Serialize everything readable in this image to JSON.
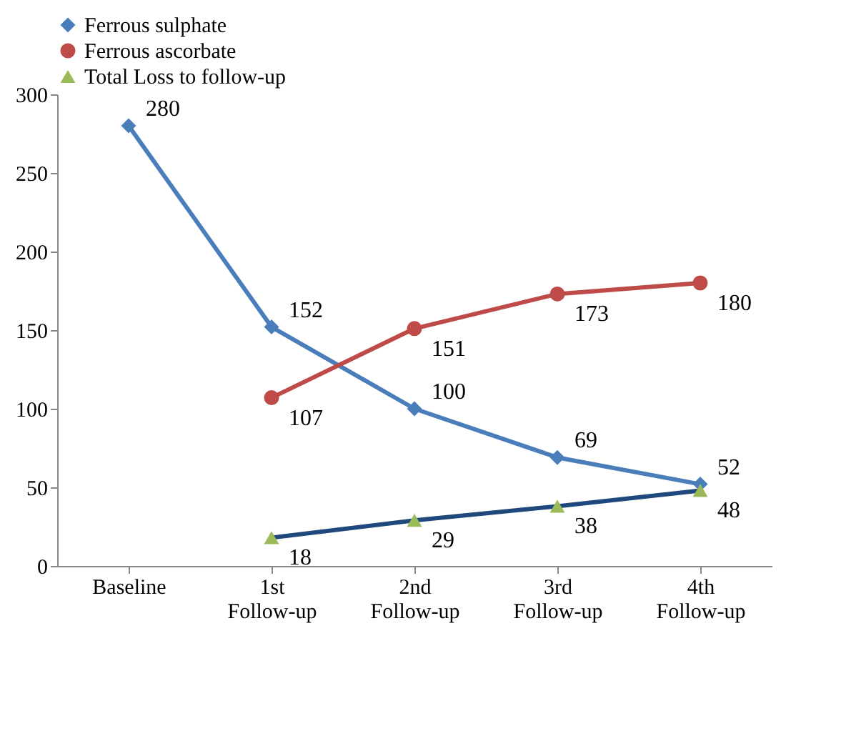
{
  "chart_data": {
    "type": "line",
    "categories": [
      "Baseline",
      "1st Follow-up",
      "2nd Follow-up",
      "3rd Follow-up",
      "4th Follow-up"
    ],
    "series": [
      {
        "name": "Ferrous sulphate",
        "color": "#4a7ebb",
        "marker": "diamond",
        "values": [
          280,
          152,
          100,
          69,
          52
        ]
      },
      {
        "name": "Ferrous ascorbate",
        "color": "#be4b48",
        "marker": "circle",
        "values": [
          null,
          107,
          151,
          173,
          180
        ]
      },
      {
        "name": "Total Loss to follow-up",
        "color": "#1f497d",
        "marker": "triangle",
        "colors": [
          null,
          "#9bbb59",
          "#9bbb59",
          "#9bbb59",
          "#9bbb59"
        ],
        "values": [
          null,
          18,
          29,
          38,
          48
        ]
      }
    ],
    "ylim": [
      0,
      300
    ],
    "yticks": [
      0,
      50,
      100,
      150,
      200,
      250,
      300
    ],
    "grid": false,
    "legend": "top",
    "data_labels": true,
    "line_style": "solid"
  }
}
